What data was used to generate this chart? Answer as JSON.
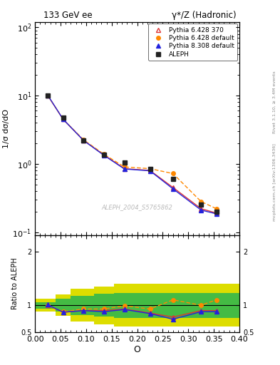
{
  "title_left": "133 GeV ee",
  "title_right": "γ*/Z (Hadronic)",
  "xlabel": "O",
  "ylabel_main": "1/σ dσ/dO",
  "ylabel_ratio": "Ratio to ALEPH",
  "right_label_top": "Rivet 3.1.10, ≥ 3.4M events",
  "right_label_bot": "mcplots.cern.ch [arXiv:1306.3436]",
  "watermark": "ALEPH_2004_S5765862",
  "aleph_x": [
    0.025,
    0.055,
    0.095,
    0.135,
    0.175,
    0.225,
    0.27,
    0.325,
    0.355
  ],
  "aleph_y": [
    10.0,
    4.8,
    2.2,
    1.35,
    1.05,
    0.85,
    0.6,
    0.25,
    0.2
  ],
  "p6_370_x": [
    0.025,
    0.055,
    0.095,
    0.135,
    0.175,
    0.225,
    0.27,
    0.325,
    0.355
  ],
  "p6_370_y": [
    10.0,
    4.5,
    2.2,
    1.35,
    0.85,
    0.8,
    0.45,
    0.22,
    0.19
  ],
  "p6_def_x": [
    0.025,
    0.055,
    0.095,
    0.135,
    0.175,
    0.225,
    0.27,
    0.325,
    0.355
  ],
  "p6_def_y": [
    10.0,
    4.5,
    2.25,
    1.38,
    0.9,
    0.85,
    0.72,
    0.28,
    0.22
  ],
  "p8_def_x": [
    0.025,
    0.055,
    0.095,
    0.135,
    0.175,
    0.225,
    0.27,
    0.325,
    0.355
  ],
  "p8_def_y": [
    10.1,
    4.5,
    2.2,
    1.33,
    0.84,
    0.79,
    0.43,
    0.21,
    0.185
  ],
  "ratio_p6_370": [
    1.0,
    0.87,
    0.9,
    0.9,
    0.93,
    0.855,
    0.78,
    0.9,
    0.9
  ],
  "ratio_p6_def": [
    1.0,
    0.88,
    0.93,
    0.93,
    0.99,
    0.93,
    1.1,
    1.0,
    1.1
  ],
  "ratio_p8_def": [
    1.01,
    0.87,
    0.9,
    0.88,
    0.92,
    0.845,
    0.74,
    0.88,
    0.88
  ],
  "band_x_edges": [
    0.0,
    0.04,
    0.07,
    0.115,
    0.155,
    0.2,
    0.25,
    0.295,
    0.345,
    0.4
  ],
  "band_yellow_low": [
    0.88,
    0.8,
    0.7,
    0.65,
    0.6,
    0.6,
    0.6,
    0.6,
    0.6
  ],
  "band_yellow_high": [
    1.12,
    1.2,
    1.3,
    1.35,
    1.4,
    1.4,
    1.4,
    1.4,
    1.4
  ],
  "band_green_low": [
    0.94,
    0.88,
    0.82,
    0.79,
    0.77,
    0.77,
    0.77,
    0.77,
    0.77
  ],
  "band_green_high": [
    1.06,
    1.12,
    1.18,
    1.21,
    1.23,
    1.23,
    1.23,
    1.23,
    1.23
  ],
  "ylim_main": [
    0.09,
    120
  ],
  "ylim_ratio": [
    0.5,
    2.3
  ],
  "xlim": [
    0.0,
    0.4
  ],
  "color_aleph": "#222222",
  "color_p6_370": "#dd3333",
  "color_p6_def": "#ff8800",
  "color_p8_def": "#2222dd",
  "color_green": "#44bb44",
  "color_yellow": "#dddd00",
  "legend_labels": [
    "ALEPH",
    "Pythia 6.428 370",
    "Pythia 6.428 default",
    "Pythia 8.308 default"
  ]
}
